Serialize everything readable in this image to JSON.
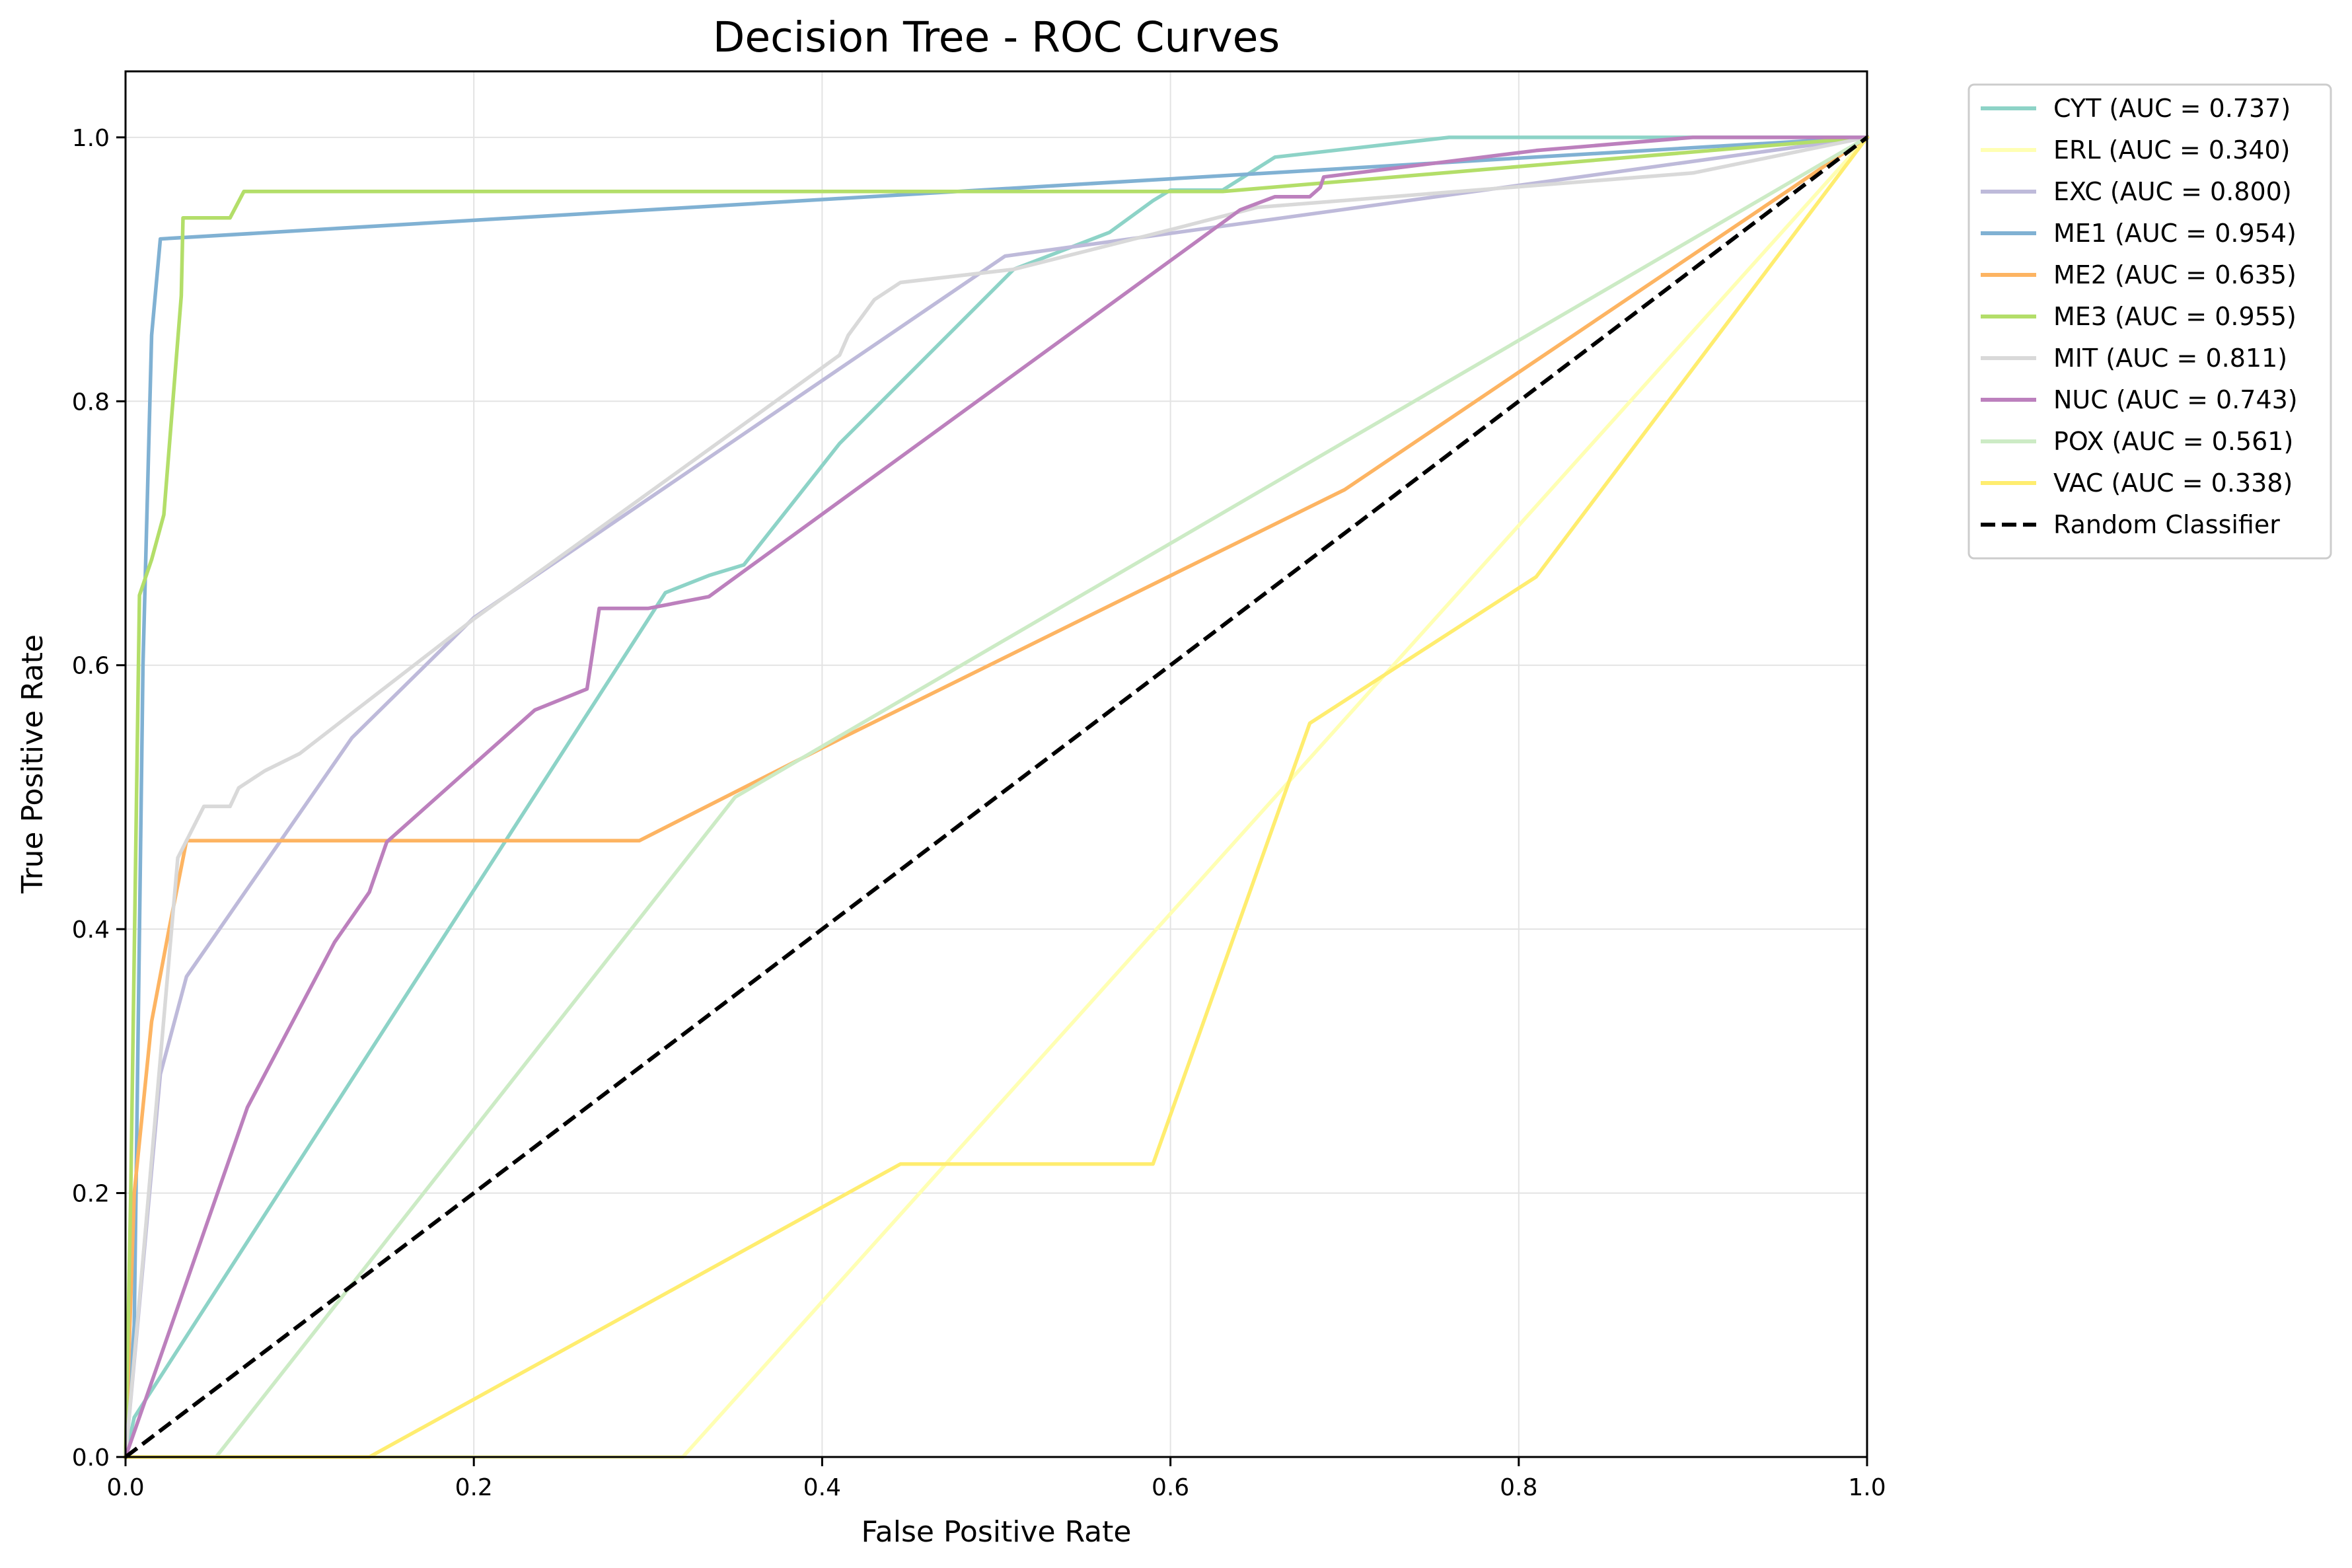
{
  "chart_data": {
    "type": "line",
    "title": "Decision Tree - ROC Curves",
    "xlabel": "False Positive Rate",
    "ylabel": "True Positive Rate",
    "xlim": [
      0.0,
      1.0
    ],
    "ylim": [
      0.0,
      1.05
    ],
    "xticks": [
      0.0,
      0.2,
      0.4,
      0.6,
      0.8,
      1.0
    ],
    "yticks": [
      0.0,
      0.2,
      0.4,
      0.6,
      0.8,
      1.0
    ],
    "xtick_labels": [
      "0.0",
      "0.2",
      "0.4",
      "0.6",
      "0.8",
      "1.0"
    ],
    "ytick_labels": [
      "0.0",
      "0.2",
      "0.4",
      "0.6",
      "0.8",
      "1.0"
    ],
    "grid": true,
    "legend_position": "outside-top-right",
    "series": [
      {
        "name": "CYT",
        "label": "CYT (AUC = 0.737)",
        "color": "#8dd3c7",
        "points": [
          [
            0,
            0
          ],
          [
            0.005,
            0.03
          ],
          [
            0.31,
            0.655
          ],
          [
            0.335,
            0.668
          ],
          [
            0.355,
            0.676
          ],
          [
            0.41,
            0.768
          ],
          [
            0.51,
            0.9
          ],
          [
            0.565,
            0.928
          ],
          [
            0.59,
            0.952
          ],
          [
            0.6,
            0.96
          ],
          [
            0.63,
            0.96
          ],
          [
            0.66,
            0.985
          ],
          [
            0.76,
            1.0
          ],
          [
            1.0,
            1.0
          ]
        ]
      },
      {
        "name": "ERL",
        "label": "ERL (AUC = 0.340)",
        "color": "#ffffb3",
        "points": [
          [
            0,
            0
          ],
          [
            0.32,
            0.0
          ],
          [
            1.0,
            1.0
          ]
        ]
      },
      {
        "name": "EXC",
        "label": "EXC (AUC = 0.800)",
        "color": "#bebada",
        "points": [
          [
            0,
            0
          ],
          [
            0.02,
            0.29
          ],
          [
            0.035,
            0.364
          ],
          [
            0.13,
            0.545
          ],
          [
            0.2,
            0.636
          ],
          [
            0.505,
            0.91
          ],
          [
            1.0,
            1.0
          ]
        ]
      },
      {
        "name": "ME1",
        "label": "ME1 (AUC = 0.954)",
        "color": "#80b1d3",
        "points": [
          [
            0,
            0
          ],
          [
            0.005,
            0.1
          ],
          [
            0.01,
            0.6
          ],
          [
            0.015,
            0.85
          ],
          [
            0.02,
            0.923
          ],
          [
            1.0,
            1.0
          ]
        ]
      },
      {
        "name": "ME2",
        "label": "ME2 (AUC = 0.635)",
        "color": "#fdb462",
        "points": [
          [
            0,
            0
          ],
          [
            0.005,
            0.2
          ],
          [
            0.015,
            0.33
          ],
          [
            0.025,
            0.4
          ],
          [
            0.035,
            0.467
          ],
          [
            0.295,
            0.467
          ],
          [
            0.41,
            0.544
          ],
          [
            0.7,
            0.733
          ],
          [
            1.0,
            1.0
          ]
        ]
      },
      {
        "name": "ME3",
        "label": "ME3 (AUC = 0.955)",
        "color": "#b3de69",
        "points": [
          [
            0,
            0
          ],
          [
            0.003,
            0.2
          ],
          [
            0.008,
            0.653
          ],
          [
            0.015,
            0.68
          ],
          [
            0.022,
            0.714
          ],
          [
            0.032,
            0.88
          ],
          [
            0.033,
            0.939
          ],
          [
            0.06,
            0.939
          ],
          [
            0.068,
            0.959
          ],
          [
            0.63,
            0.959
          ],
          [
            1.0,
            1.0
          ]
        ]
      },
      {
        "name": "MIT",
        "label": "MIT (AUC = 0.811)",
        "color": "#d9d9d9",
        "points": [
          [
            0,
            0
          ],
          [
            0.01,
            0.15
          ],
          [
            0.03,
            0.454
          ],
          [
            0.045,
            0.493
          ],
          [
            0.06,
            0.493
          ],
          [
            0.065,
            0.507
          ],
          [
            0.08,
            0.52
          ],
          [
            0.1,
            0.533
          ],
          [
            0.2,
            0.635
          ],
          [
            0.41,
            0.835
          ],
          [
            0.415,
            0.85
          ],
          [
            0.43,
            0.877
          ],
          [
            0.445,
            0.89
          ],
          [
            0.51,
            0.9
          ],
          [
            0.6,
            0.93
          ],
          [
            0.65,
            0.947
          ],
          [
            0.9,
            0.973
          ],
          [
            1.0,
            1.0
          ]
        ]
      },
      {
        "name": "NUC",
        "label": "NUC (AUC = 0.743)",
        "color": "#bc80bd",
        "points": [
          [
            0,
            0
          ],
          [
            0.07,
            0.265
          ],
          [
            0.12,
            0.39
          ],
          [
            0.14,
            0.428
          ],
          [
            0.15,
            0.466
          ],
          [
            0.235,
            0.566
          ],
          [
            0.265,
            0.582
          ],
          [
            0.272,
            0.643
          ],
          [
            0.3,
            0.643
          ],
          [
            0.335,
            0.652
          ],
          [
            0.36,
            0.676
          ],
          [
            0.64,
            0.945
          ],
          [
            0.66,
            0.955
          ],
          [
            0.68,
            0.955
          ],
          [
            0.686,
            0.962
          ],
          [
            0.688,
            0.97
          ],
          [
            0.81,
            0.99
          ],
          [
            0.9,
            1.0
          ],
          [
            1.0,
            1.0
          ]
        ]
      },
      {
        "name": "POX",
        "label": "POX (AUC = 0.561)",
        "color": "#ccebc5",
        "points": [
          [
            0,
            0
          ],
          [
            0.052,
            0.0
          ],
          [
            0.35,
            0.5
          ],
          [
            1.0,
            1.0
          ]
        ]
      },
      {
        "name": "VAC",
        "label": "VAC (AUC = 0.338)",
        "color": "#ffed6f",
        "points": [
          [
            0,
            0
          ],
          [
            0.14,
            0.0
          ],
          [
            0.445,
            0.222
          ],
          [
            0.59,
            0.222
          ],
          [
            0.68,
            0.556
          ],
          [
            0.81,
            0.667
          ],
          [
            1.0,
            1.0
          ]
        ]
      }
    ],
    "reference_line": {
      "label": "Random Classifier",
      "color": "#000000",
      "style": "dashed",
      "points": [
        [
          0,
          0
        ],
        [
          1,
          1
        ]
      ]
    }
  }
}
